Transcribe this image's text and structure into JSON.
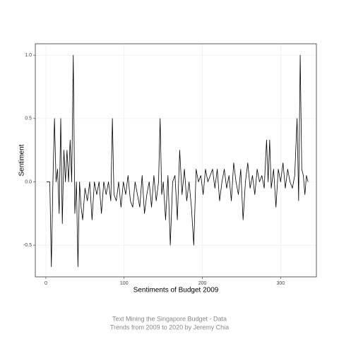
{
  "chart_data": {
    "type": "line",
    "x_label": "Sentiments of Budget 2009",
    "y_label": "Sentiment",
    "caption": [
      "Text Mining the Singapore Budget - Data",
      "Trends from 2009 to 2020 by Jeremy Chia"
    ],
    "x": [
      1,
      5,
      7,
      9,
      11,
      13,
      15,
      17,
      19,
      21,
      23,
      25,
      27,
      29,
      31,
      33,
      35,
      37,
      39,
      41,
      43,
      45,
      47,
      50,
      53,
      56,
      59,
      62,
      65,
      68,
      71,
      74,
      77,
      80,
      83,
      85,
      87,
      90,
      93,
      96,
      99,
      102,
      105,
      108,
      111,
      114,
      117,
      120,
      123,
      126,
      129,
      132,
      135,
      138,
      141,
      144,
      146,
      148,
      150,
      153,
      156,
      159,
      162,
      165,
      168,
      171,
      174,
      177,
      180,
      183,
      186,
      189,
      192,
      195,
      198,
      201,
      204,
      207,
      210,
      213,
      216,
      219,
      222,
      225,
      228,
      231,
      234,
      237,
      240,
      243,
      246,
      249,
      252,
      255,
      258,
      261,
      264,
      267,
      270,
      273,
      276,
      279,
      282,
      284,
      286,
      288,
      291,
      294,
      297,
      300,
      303,
      306,
      309,
      312,
      315,
      318,
      321,
      323,
      325,
      327,
      329,
      331,
      333,
      335
    ],
    "series": [
      {
        "color": "#000000",
        "values": [
          0,
          0,
          -0.67,
          0,
          0.5,
          0,
          0.1,
          -0.25,
          0.5,
          -0.33,
          0.25,
          0,
          0.25,
          0,
          0.33,
          0,
          1.0,
          -0.25,
          0,
          -0.67,
          0,
          -0.2,
          -0.3,
          -0.05,
          -0.15,
          0,
          -0.3,
          0,
          -0.1,
          0,
          -0.25,
          0,
          -0.1,
          0,
          -0.15,
          0.5,
          -0.1,
          -0.15,
          0,
          -0.2,
          0,
          -0.1,
          0.05,
          -0.15,
          -0.2,
          0,
          -0.1,
          -0.2,
          0.05,
          -0.25,
          -0.1,
          0,
          -0.2,
          0.05,
          -0.15,
          0,
          0.5,
          -0.1,
          0,
          -0.3,
          0.05,
          -0.5,
          0,
          0.05,
          -0.3,
          0.25,
          -0.1,
          0.1,
          -0.15,
          0,
          -0.2,
          -0.5,
          0.1,
          0,
          0.05,
          -0.1,
          0.1,
          0,
          0.05,
          0.1,
          -0.05,
          0.1,
          -0.15,
          0,
          0.1,
          -0.05,
          0.05,
          -0.15,
          0.15,
          0,
          -0.1,
          0.1,
          -0.3,
          0,
          0.15,
          -0.05,
          0.05,
          -0.1,
          0.1,
          0,
          0.05,
          -0.05,
          0.33,
          0,
          0.33,
          -0.05,
          0.1,
          -0.2,
          0.1,
          0,
          0.15,
          -0.05,
          0.1,
          0,
          -0.05,
          0.05,
          0.5,
          -0.15,
          1.0,
          0.1,
          0.05,
          -0.1,
          0.05,
          0
        ]
      }
    ],
    "xlim": [
      -13.5,
      345.7
    ],
    "ylim": [
      -0.75,
      1.09
    ],
    "xticks": [
      0,
      100,
      200,
      300
    ],
    "yticks": [
      -0.5,
      {
        "value": 0,
        "label": "0.0"
      },
      0.5,
      {
        "value": 1,
        "label": "1.0"
      }
    ],
    "grid": true
  }
}
